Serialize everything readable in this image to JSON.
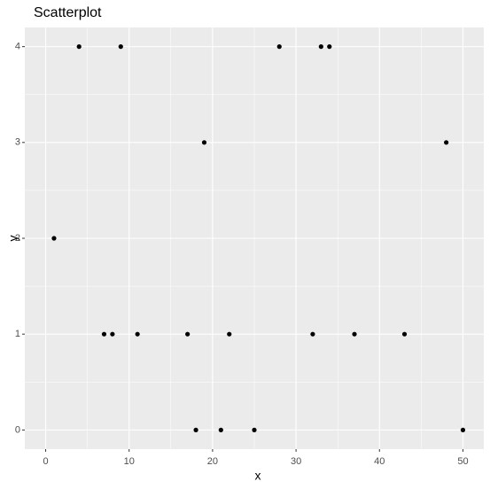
{
  "chart_data": {
    "type": "scatter",
    "title": "Scatterplot",
    "x_label": "x",
    "y_label": "y",
    "x": [
      1,
      4,
      9,
      19,
      28,
      33,
      34,
      48,
      7,
      8,
      11,
      17,
      22,
      32,
      37,
      43,
      18,
      21,
      25,
      50
    ],
    "values": [
      2,
      4,
      4,
      3,
      4,
      4,
      4,
      3,
      1,
      1,
      1,
      1,
      1,
      1,
      1,
      1,
      0,
      0,
      0,
      0
    ],
    "color": "#000000",
    "xlim": [
      -2.5,
      52.5
    ],
    "xticks": [
      0,
      10,
      20,
      30,
      40,
      50
    ],
    "ylim": [
      -0.2,
      4.2
    ],
    "yticks": [
      0,
      1,
      2,
      3,
      4
    ],
    "grid": true
  }
}
